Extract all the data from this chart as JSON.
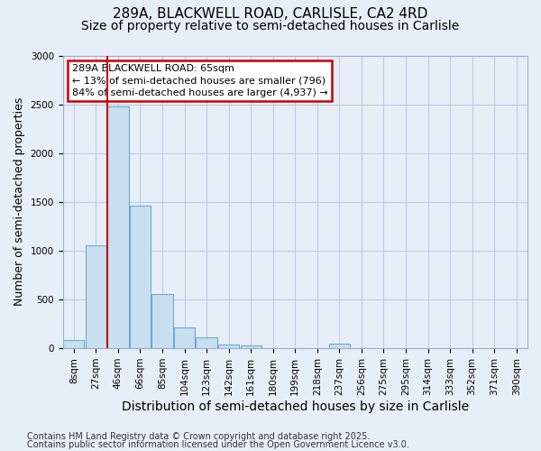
{
  "title_line1": "289A, BLACKWELL ROAD, CARLISLE, CA2 4RD",
  "title_line2": "Size of property relative to semi-detached houses in Carlisle",
  "xlabel": "Distribution of semi-detached houses by size in Carlisle",
  "ylabel": "Number of semi-detached properties",
  "categories": [
    "8sqm",
    "27sqm",
    "46sqm",
    "66sqm",
    "85sqm",
    "104sqm",
    "123sqm",
    "142sqm",
    "161sqm",
    "180sqm",
    "199sqm",
    "218sqm",
    "237sqm",
    "256sqm",
    "275sqm",
    "295sqm",
    "314sqm",
    "333sqm",
    "352sqm",
    "371sqm",
    "390sqm"
  ],
  "values": [
    80,
    1050,
    2480,
    1460,
    560,
    210,
    110,
    40,
    30,
    5,
    0,
    0,
    50,
    0,
    0,
    0,
    0,
    0,
    0,
    0,
    0
  ],
  "bar_color": "#c8dff0",
  "bar_edge_color": "#6aaad4",
  "red_line_x": 1.5,
  "annotation_text": "289A BLACKWELL ROAD: 65sqm\n← 13% of semi-detached houses are smaller (796)\n84% of semi-detached houses are larger (4,937) →",
  "annotation_box_facecolor": "#ffffff",
  "annotation_box_edgecolor": "#cc0000",
  "ylim": [
    0,
    3000
  ],
  "yticks": [
    0,
    500,
    1000,
    1500,
    2000,
    2500,
    3000
  ],
  "footnote1": "Contains HM Land Registry data © Crown copyright and database right 2025.",
  "footnote2": "Contains public sector information licensed under the Open Government Licence v3.0.",
  "bg_color": "#e8eef8",
  "plot_bg_color": "#e8eef8",
  "grid_color": "#c0cce0",
  "title_fontsize": 11,
  "subtitle_fontsize": 10,
  "xlabel_fontsize": 10,
  "ylabel_fontsize": 9,
  "tick_fontsize": 7.5,
  "annotation_fontsize": 8,
  "footnote_fontsize": 7
}
